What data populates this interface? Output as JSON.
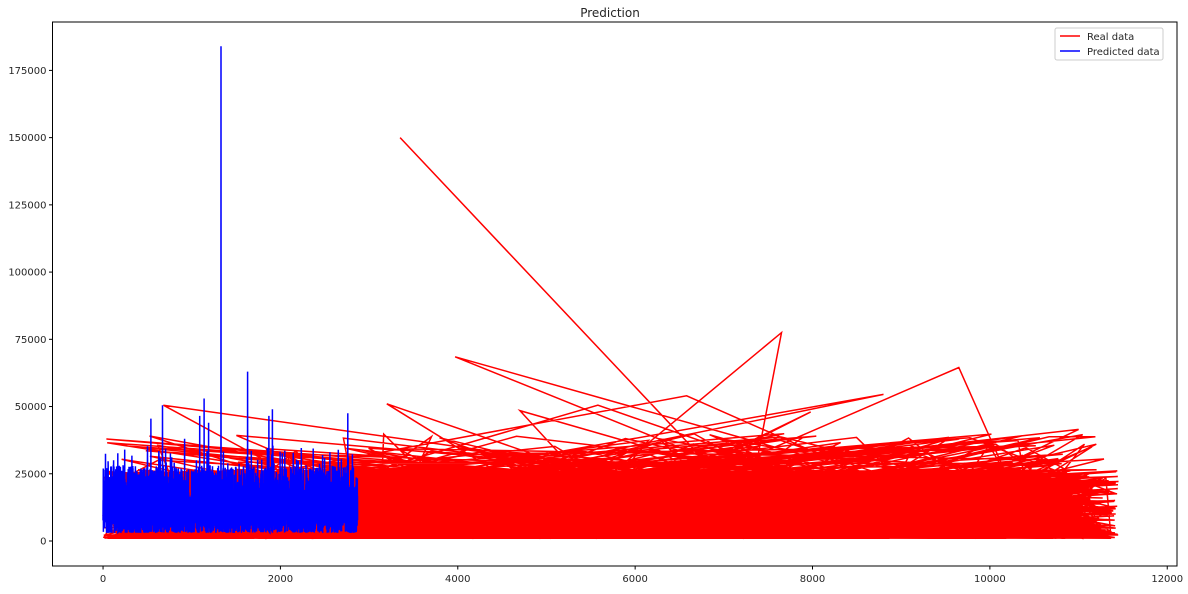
{
  "chart_data": {
    "type": "line",
    "title": "Prediction",
    "xlabel": "",
    "ylabel": "",
    "xlim": [
      -570,
      12110
    ],
    "ylim": [
      -9300,
      193000
    ],
    "xticks": [
      0,
      2000,
      4000,
      6000,
      8000,
      10000,
      12000
    ],
    "yticks": [
      0,
      25000,
      50000,
      75000,
      100000,
      125000,
      150000,
      175000
    ],
    "grid": false,
    "legend_placement": "top-right",
    "series": [
      {
        "name": "Real data",
        "color": "#ff0000",
        "x_range": [
          0,
          11450
        ],
        "typical_y_range": [
          1000,
          31000
        ],
        "notable_points": [
          {
            "x": 3350,
            "y": 150000
          },
          {
            "x": 7650,
            "y": 77500
          },
          {
            "x": 3970,
            "y": 68500
          },
          {
            "x": 9650,
            "y": 64500
          },
          {
            "x": 8800,
            "y": 54500
          },
          {
            "x": 680,
            "y": 50500
          },
          {
            "x": 5580,
            "y": 50500
          },
          {
            "x": 3200,
            "y": 51000
          },
          {
            "x": 4700,
            "y": 48500
          },
          {
            "x": 7980,
            "y": 48000
          },
          {
            "x": 6580,
            "y": 54000
          },
          {
            "x": 11000,
            "y": 41500
          },
          {
            "x": 11200,
            "y": 36000
          }
        ]
      },
      {
        "name": "Predicted data",
        "color": "#0000ff",
        "x_range": [
          0,
          2870
        ],
        "typical_y_range": [
          3000,
          28000
        ],
        "notable_points": [
          {
            "x": 1330,
            "y": 184000
          },
          {
            "x": 1630,
            "y": 63000
          },
          {
            "x": 1140,
            "y": 53000
          },
          {
            "x": 670,
            "y": 50500
          },
          {
            "x": 1910,
            "y": 49000
          },
          {
            "x": 2760,
            "y": 47500
          },
          {
            "x": 1870,
            "y": 46500
          },
          {
            "x": 1090,
            "y": 46500
          },
          {
            "x": 540,
            "y": 45500
          },
          {
            "x": 1190,
            "y": 44000
          },
          {
            "x": 920,
            "y": 38000
          }
        ]
      }
    ]
  }
}
